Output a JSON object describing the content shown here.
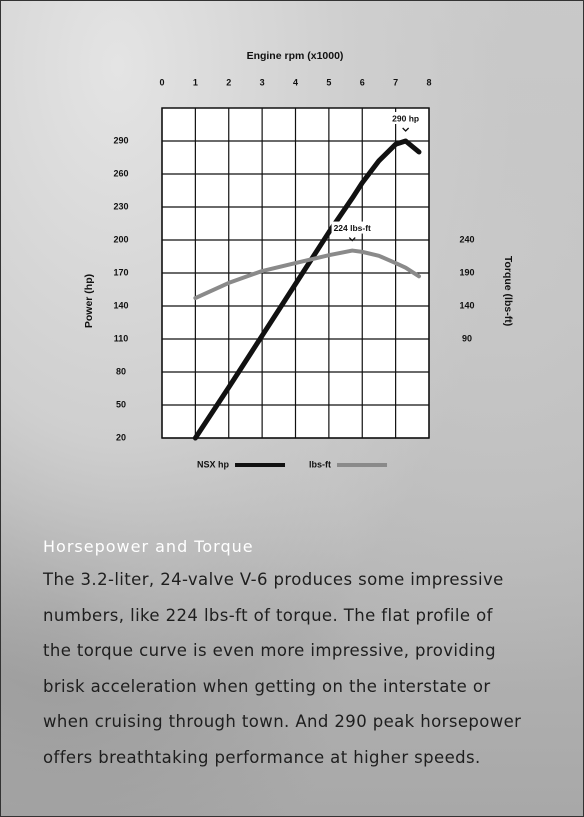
{
  "chart_data": {
    "type": "line",
    "xlabel": "Engine rpm (x1000)",
    "ylabel": "Power (hp)",
    "y2label": "Torque (lbs-ft)",
    "x": [
      1,
      2,
      3,
      4,
      5,
      5.7,
      6,
      6.5,
      7,
      7.3,
      7.7
    ],
    "xlim": [
      0,
      8
    ],
    "xticks": [
      0,
      1,
      2,
      3,
      4,
      5,
      6,
      7,
      8
    ],
    "ylim": [
      20,
      320
    ],
    "yticks": [
      20,
      50,
      80,
      110,
      140,
      170,
      200,
      230,
      260,
      290
    ],
    "y2lim": [
      -60,
      440
    ],
    "y2ticks": [
      90,
      140,
      190,
      240
    ],
    "grid": true,
    "series": [
      {
        "name": "NSX hp",
        "color": "#111111",
        "values": [
          20,
          66,
          113,
          160,
          207,
          238,
          252,
          272,
          287,
          290,
          280
        ]
      },
      {
        "name": "lbs-ft",
        "color": "#8a8a8a",
        "axis": "y2",
        "values": [
          152,
          175,
          193,
          205,
          217,
          224,
          222,
          216,
          205,
          198,
          185
        ]
      }
    ],
    "annotations": [
      "290 hp",
      "224 lbs-ft"
    ]
  },
  "caption": {
    "heading": "Horsepower and Torque",
    "lines": [
      "The 3.2-liter, 24-valve V-6 produces some impressive",
      "numbers, like 224 lbs-ft of torque. The flat profile of",
      "the torque curve is even more impressive, providing",
      "brisk acceleration when getting on the interstate or",
      "when cruising through town. And 290 peak horsepower",
      "offers breathtaking performance at higher speeds."
    ]
  }
}
